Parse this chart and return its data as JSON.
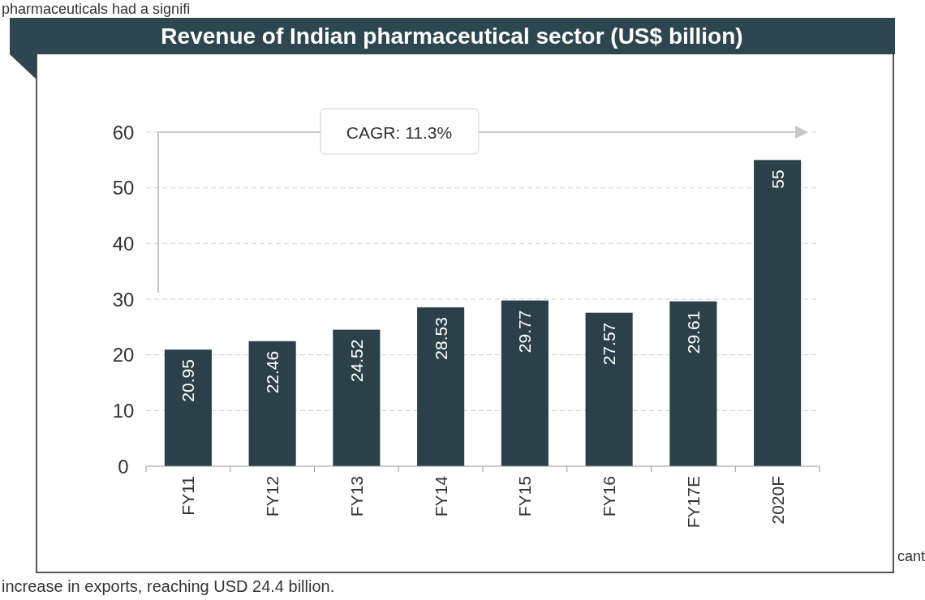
{
  "chart_data": {
    "type": "bar",
    "title": "Revenue of Indian pharmaceutical sector (US$ billion)",
    "categories": [
      "FY11",
      "FY12",
      "FY13",
      "FY14",
      "FY15",
      "FY16",
      "FY17E",
      "2020F"
    ],
    "values": [
      20.95,
      22.46,
      24.52,
      28.53,
      29.77,
      27.57,
      29.61,
      55
    ],
    "color": "#2b4049",
    "ylim": [
      0,
      60
    ],
    "yticks": [
      0,
      10,
      20,
      30,
      40,
      50,
      60
    ],
    "grid": "y",
    "data_labels": true,
    "annotations": [
      "CAGR: 11.3%",
      "pharmaceuticals had a signifi",
      "cant",
      "increase in exports, reaching USD 24.4 billion."
    ]
  }
}
